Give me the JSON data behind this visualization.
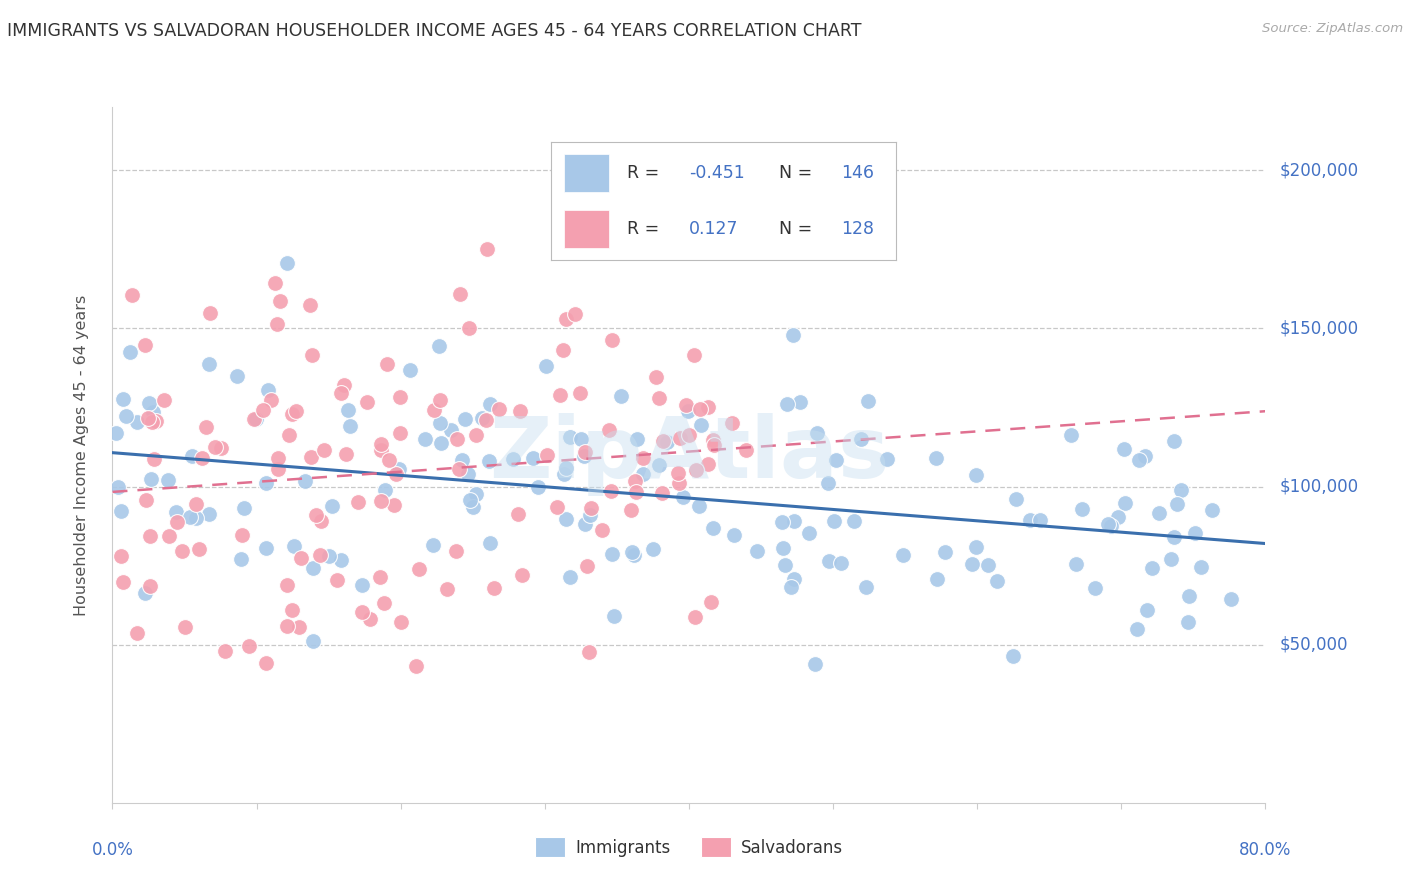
{
  "title": "IMMIGRANTS VS SALVADORAN HOUSEHOLDER INCOME AGES 45 - 64 YEARS CORRELATION CHART",
  "source": "Source: ZipAtlas.com",
  "ylabel": "Householder Income Ages 45 - 64 years",
  "ytick_labels": [
    "$50,000",
    "$100,000",
    "$150,000",
    "$200,000"
  ],
  "ytick_values": [
    50000,
    100000,
    150000,
    200000
  ],
  "ymin": 0,
  "ymax": 220000,
  "xmin": 0.0,
  "xmax": 0.8,
  "r_immigrants": -0.451,
  "r_salvadorans": 0.127,
  "n_immigrants": 146,
  "n_salvadorans": 128,
  "color_immigrants": "#a8c8e8",
  "color_salvadorans": "#f4a0b0",
  "color_immigrants_line": "#3a6fad",
  "color_salvadorans_line": "#e07090",
  "color_title": "#333333",
  "color_blue": "#4472c4",
  "color_legend_text": "#333333",
  "background_color": "#ffffff",
  "grid_color": "#c8c8c8",
  "watermark": "ZipAtlas",
  "seed_immigrants": 12,
  "seed_salvadorans": 77,
  "legend_r_color": "#e31a1c",
  "legend_n_color": "#4472c4",
  "legend_label_color": "#333333"
}
